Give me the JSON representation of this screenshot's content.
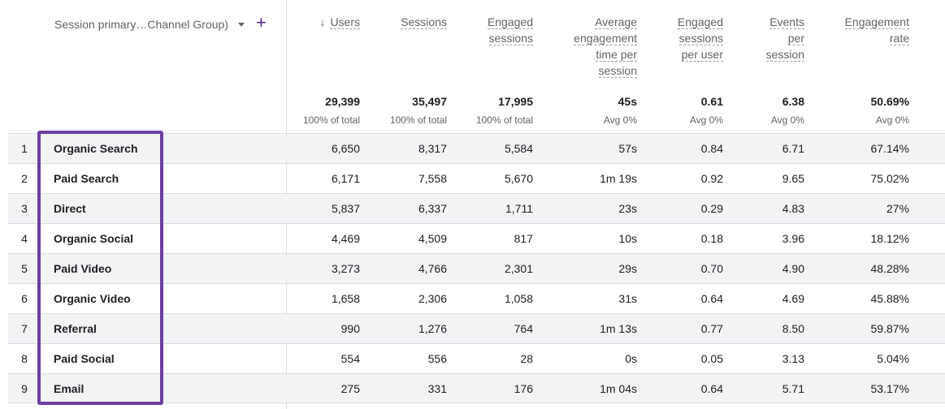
{
  "dimension_header": {
    "label": "Session primary…Channel Group)",
    "add_label": "+"
  },
  "columns": [
    {
      "key": "users",
      "lines": [
        "Users"
      ],
      "sorted": true,
      "sort_arrow": "↓"
    },
    {
      "key": "sessions",
      "lines": [
        "Sessions"
      ]
    },
    {
      "key": "engaged_sessions",
      "lines": [
        "Engaged",
        "sessions"
      ]
    },
    {
      "key": "avg_engagement_time",
      "lines": [
        "Average",
        "engagement",
        "time per",
        "session"
      ]
    },
    {
      "key": "engaged_per_user",
      "lines": [
        "Engaged",
        "sessions",
        "per user"
      ]
    },
    {
      "key": "events_per_session",
      "lines": [
        "Events",
        "per",
        "session"
      ]
    },
    {
      "key": "engagement_rate",
      "lines": [
        "Engagement",
        "rate"
      ]
    }
  ],
  "totals": [
    {
      "value": "29,399",
      "sub": "100% of total"
    },
    {
      "value": "35,497",
      "sub": "100% of total"
    },
    {
      "value": "17,995",
      "sub": "100% of total"
    },
    {
      "value": "45s",
      "sub": "Avg 0%"
    },
    {
      "value": "0.61",
      "sub": "Avg 0%"
    },
    {
      "value": "6.38",
      "sub": "Avg 0%"
    },
    {
      "value": "50.69%",
      "sub": "Avg 0%"
    }
  ],
  "rows": [
    {
      "index": "1",
      "channel": "Organic Search",
      "values": [
        "6,650",
        "8,317",
        "5,584",
        "57s",
        "0.84",
        "6.71",
        "67.14%"
      ]
    },
    {
      "index": "2",
      "channel": "Paid Search",
      "values": [
        "6,171",
        "7,558",
        "5,670",
        "1m 19s",
        "0.92",
        "9.65",
        "75.02%"
      ]
    },
    {
      "index": "3",
      "channel": "Direct",
      "values": [
        "5,837",
        "6,337",
        "1,711",
        "23s",
        "0.29",
        "4.83",
        "27%"
      ]
    },
    {
      "index": "4",
      "channel": "Organic Social",
      "values": [
        "4,469",
        "4,509",
        "817",
        "10s",
        "0.18",
        "3.96",
        "18.12%"
      ]
    },
    {
      "index": "5",
      "channel": "Paid Video",
      "values": [
        "3,273",
        "4,766",
        "2,301",
        "29s",
        "0.70",
        "4.90",
        "48.28%"
      ]
    },
    {
      "index": "6",
      "channel": "Organic Video",
      "values": [
        "1,658",
        "2,306",
        "1,058",
        "31s",
        "0.64",
        "4.69",
        "45.88%"
      ]
    },
    {
      "index": "7",
      "channel": "Referral",
      "values": [
        "990",
        "1,276",
        "764",
        "1m 13s",
        "0.77",
        "8.50",
        "59.87%"
      ]
    },
    {
      "index": "8",
      "channel": "Paid Social",
      "values": [
        "554",
        "556",
        "28",
        "0s",
        "0.05",
        "3.13",
        "5.04%"
      ]
    },
    {
      "index": "9",
      "channel": "Email",
      "values": [
        "275",
        "331",
        "176",
        "1m 04s",
        "0.64",
        "5.71",
        "53.17%"
      ]
    }
  ],
  "colors": {
    "highlight": "#6b3fa0",
    "accent": "#5c2d91",
    "row_shade": "#f1f3f4"
  }
}
